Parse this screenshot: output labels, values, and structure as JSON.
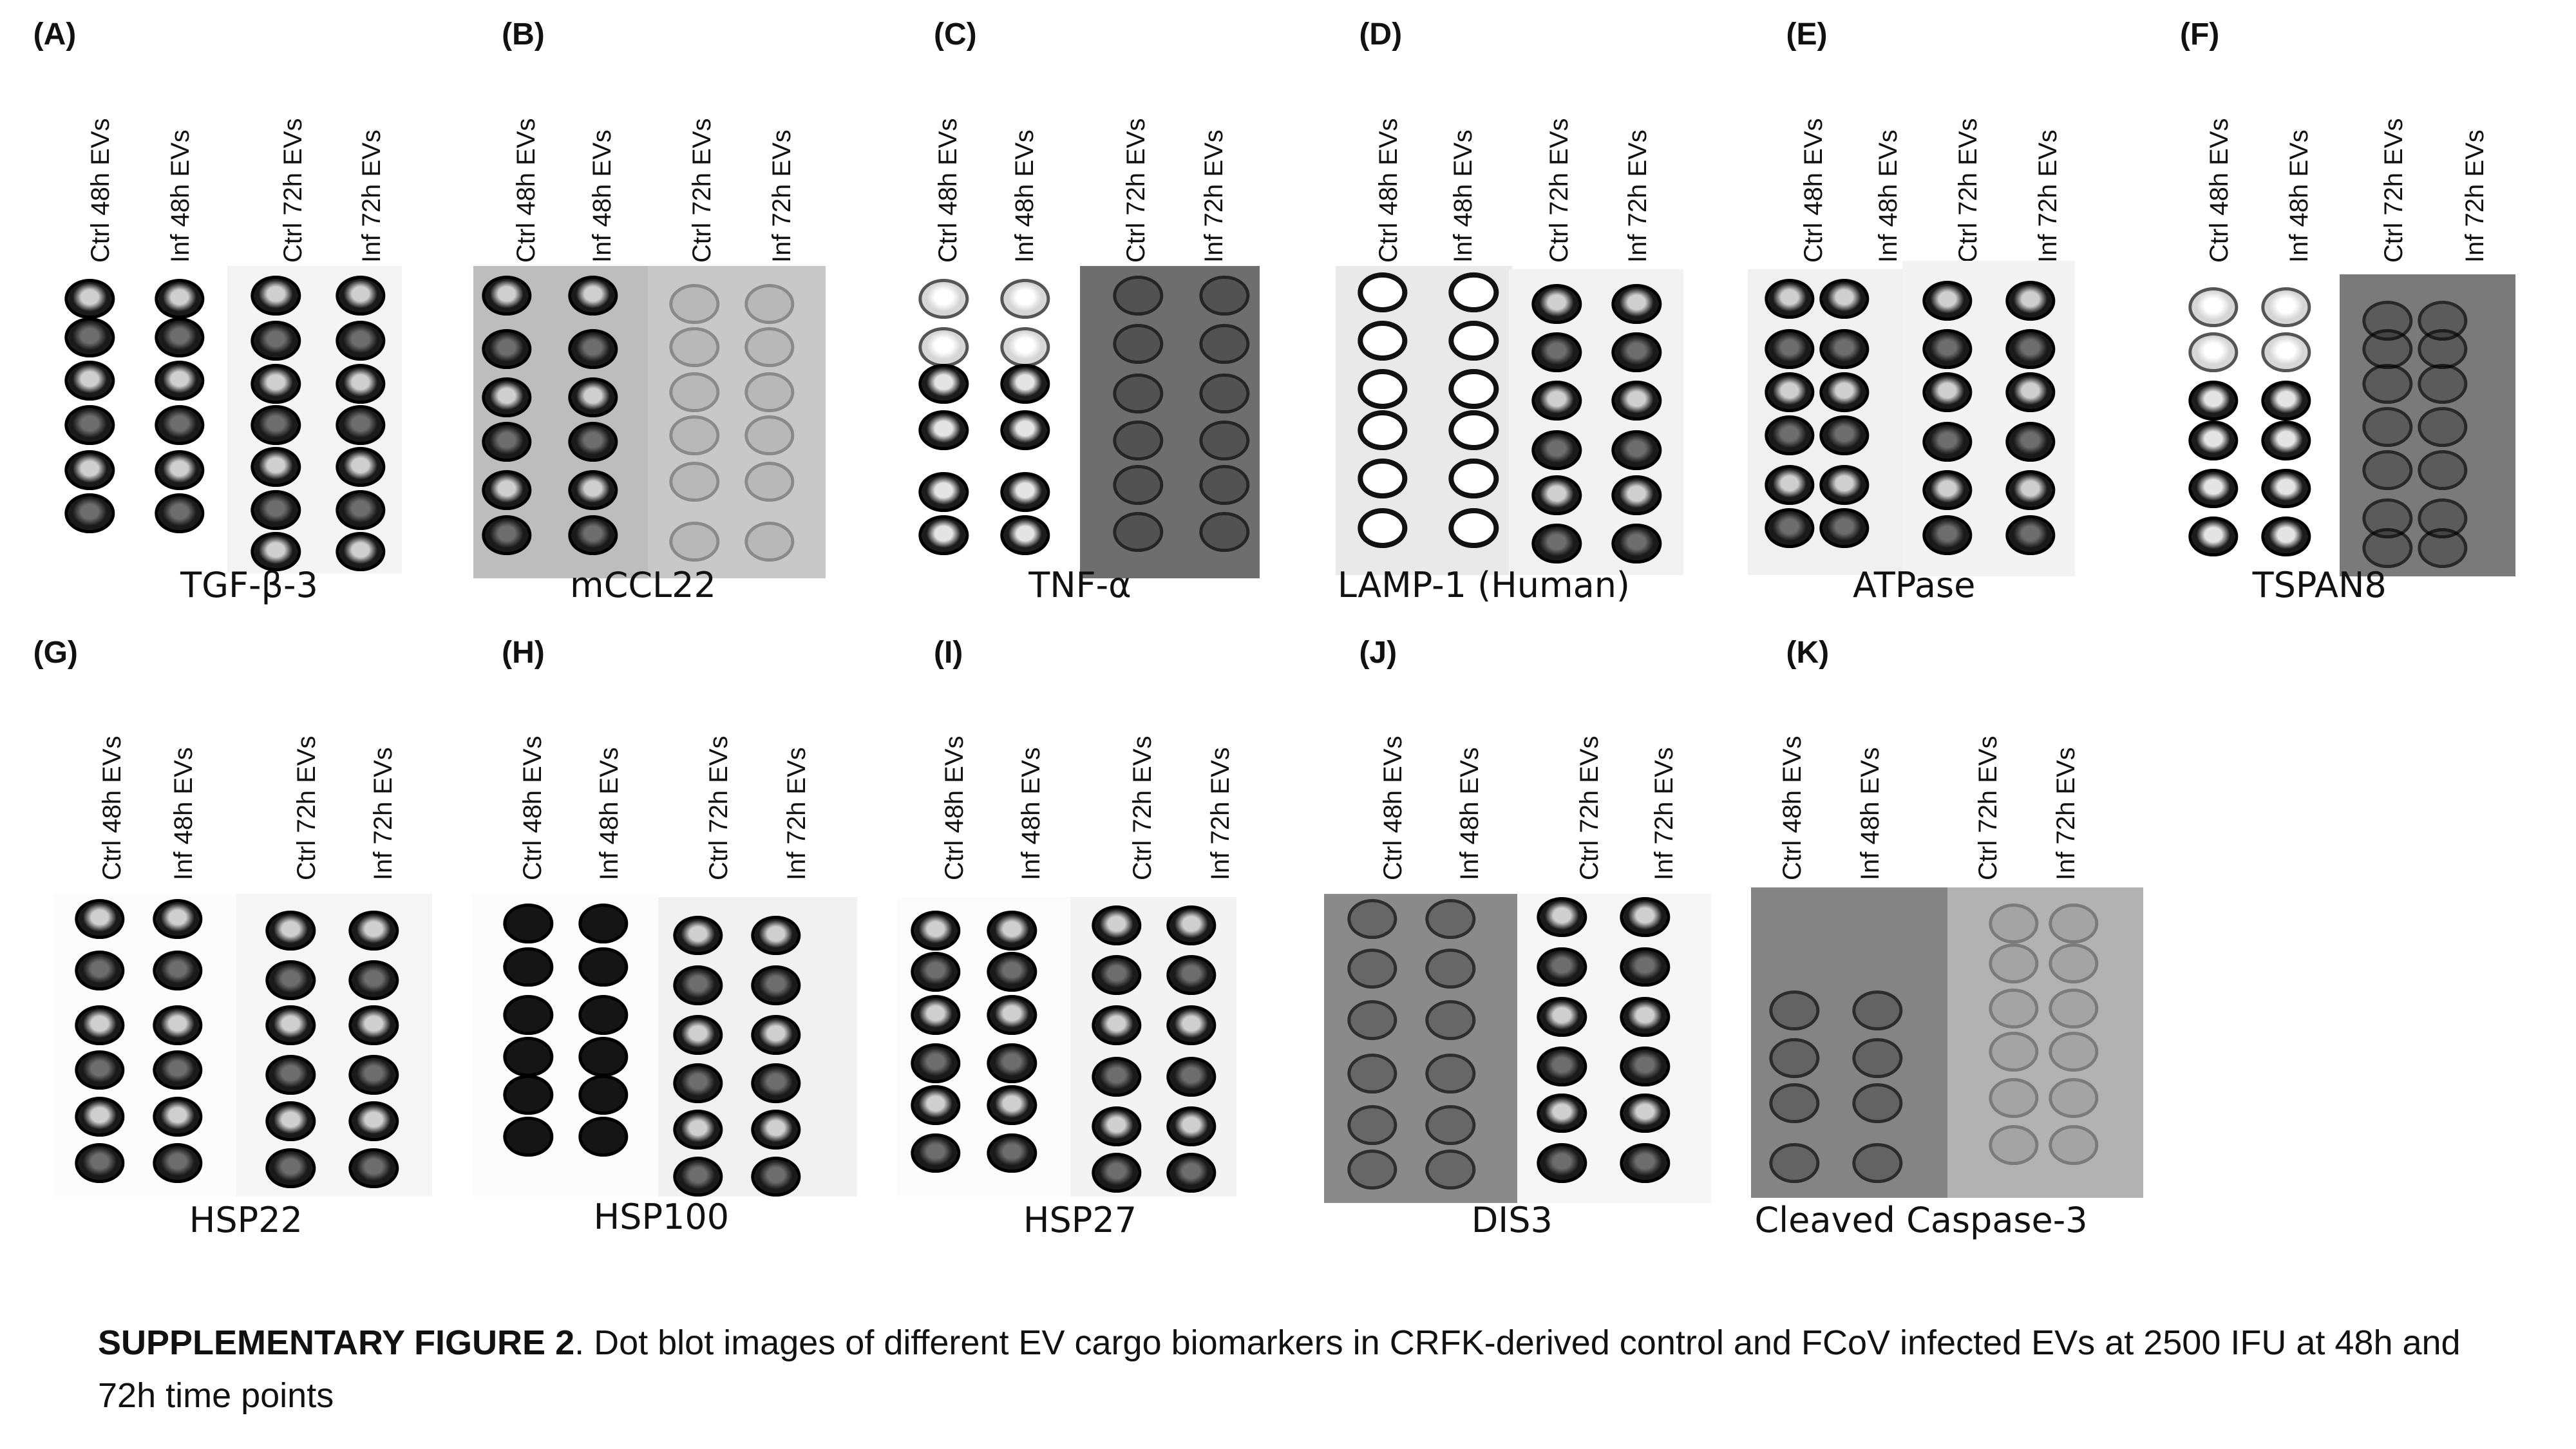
{
  "figure": {
    "caption_label": "SUPPLEMENTARY FIGURE 2",
    "caption_text": ". Dot blot images of different EV cargo biomarkers in CRFK-derived control and FCoV infected EVs at 2500 IFU at 48h and 72h time points"
  },
  "lanes": [
    "Ctrl 48h EVs",
    "Inf 48h EVs",
    "Ctrl 72h EVs",
    "Inf 72h EVs"
  ],
  "panels": [
    {
      "letter": "(A)",
      "marker": "TGF-β-3"
    },
    {
      "letter": "(B)",
      "marker": "mCCL22"
    },
    {
      "letter": "(C)",
      "marker": "TNF-α"
    },
    {
      "letter": "(D)",
      "marker": "LAMP-1 (Human)"
    },
    {
      "letter": "(E)",
      "marker": "ATPase"
    },
    {
      "letter": "(F)",
      "marker": "TSPAN8"
    },
    {
      "letter": "(G)",
      "marker": "HSP22"
    },
    {
      "letter": "(H)",
      "marker": "HSP100"
    },
    {
      "letter": "(I)",
      "marker": "HSP27"
    },
    {
      "letter": "(J)",
      "marker": "DIS3"
    },
    {
      "letter": "(K)",
      "marker": "Cleaved Caspase-3"
    }
  ]
}
